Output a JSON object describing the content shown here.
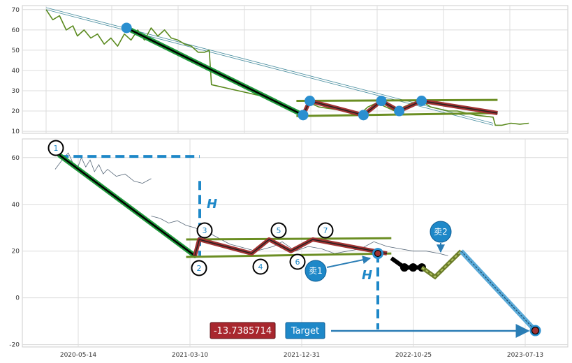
{
  "chart_data": [
    {
      "type": "line",
      "panel": "top",
      "ylim": [
        9,
        72
      ],
      "yticks": [
        10,
        20,
        30,
        40,
        50,
        60,
        70
      ],
      "grid": true,
      "series": [
        {
          "role": "price",
          "color": "#5a8a1e",
          "points": [
            [
              0,
              70
            ],
            [
              1.5,
              65
            ],
            [
              3,
              67
            ],
            [
              4.5,
              60
            ],
            [
              6,
              62
            ],
            [
              7,
              57
            ],
            [
              8.5,
              60
            ],
            [
              10,
              56
            ],
            [
              11.5,
              58
            ],
            [
              13,
              53
            ],
            [
              14.5,
              56
            ],
            [
              16,
              52
            ],
            [
              17.5,
              58
            ],
            [
              19,
              55
            ],
            [
              20.5,
              60
            ],
            [
              22,
              55
            ],
            [
              23.5,
              61
            ],
            [
              25,
              57
            ],
            [
              26.5,
              60
            ],
            [
              28,
              56
            ],
            [
              29.5,
              55
            ],
            [
              31,
              53
            ],
            [
              32.5,
              52
            ],
            [
              34,
              49
            ],
            [
              35.5,
              49
            ],
            [
              36.5,
              50
            ],
            [
              37,
              33
            ],
            [
              39,
              32
            ],
            [
              41,
              31
            ],
            [
              43,
              30
            ],
            [
              45,
              29
            ],
            [
              47,
              28
            ],
            [
              49,
              27
            ],
            [
              51,
              25
            ],
            [
              53,
              23
            ],
            [
              55,
              21
            ],
            [
              56,
              20
            ],
            [
              57.5,
              18
            ],
            [
              59,
              24
            ],
            [
              61,
              22
            ],
            [
              64,
              21
            ],
            [
              67,
              20
            ],
            [
              70,
              18
            ],
            [
              72,
              22
            ],
            [
              74,
              24
            ],
            [
              76,
              22
            ],
            [
              78,
              20
            ],
            [
              80,
              22
            ],
            [
              82,
              24
            ],
            [
              84,
              25
            ],
            [
              86,
              22
            ],
            [
              88,
              21
            ],
            [
              90,
              20
            ],
            [
              92,
              20
            ],
            [
              94,
              19
            ],
            [
              96,
              18
            ],
            [
              100,
              17
            ],
            [
              100.5,
              13
            ],
            [
              102,
              13
            ],
            [
              104,
              14
            ],
            [
              106,
              13.5
            ],
            [
              108,
              14
            ]
          ]
        }
      ],
      "channel": {
        "upper": [
          [
            0,
            71
          ],
          [
            100,
            14
          ]
        ],
        "lower": [
          [
            0,
            70
          ],
          [
            100,
            13
          ]
        ]
      },
      "trend_down": [
        [
          18,
          61
        ],
        [
          57.5,
          18
        ]
      ],
      "zigzag": [
        [
          57.5,
          18
        ],
        [
          59,
          25
        ],
        [
          71,
          18
        ],
        [
          75,
          25
        ],
        [
          79,
          20
        ],
        [
          84,
          25
        ],
        [
          101,
          19
        ]
      ],
      "range_lines": {
        "upper": [
          [
            56,
            25
          ],
          [
            101,
            25.5
          ]
        ],
        "lower": [
          [
            56,
            17.5
          ],
          [
            101,
            19
          ]
        ]
      },
      "pivot_markers": [
        [
          18,
          61
        ],
        [
          57.5,
          18
        ],
        [
          59,
          25
        ],
        [
          71,
          18
        ],
        [
          75,
          25
        ],
        [
          79,
          20
        ],
        [
          84,
          25
        ]
      ]
    },
    {
      "type": "line",
      "panel": "bottom",
      "ylim": [
        -21,
        68
      ],
      "yticks": [
        -20,
        0,
        20,
        40,
        60
      ],
      "grid": true,
      "x_tick_labels": [
        "2020-05-14",
        "2021-03-10",
        "2021-12-31",
        "2022-10-25",
        "2023-07-13"
      ],
      "price_segments": [
        [
          [
            0,
            55
          ],
          [
            2,
            60
          ],
          [
            3,
            62
          ],
          [
            4,
            58
          ],
          [
            5,
            55
          ],
          [
            6,
            60
          ],
          [
            7,
            56
          ],
          [
            8,
            59
          ],
          [
            9,
            54
          ],
          [
            10,
            57
          ],
          [
            11,
            53
          ],
          [
            12,
            55
          ],
          [
            14,
            52
          ],
          [
            16,
            53
          ],
          [
            18,
            50
          ],
          [
            20,
            49
          ],
          [
            22,
            51
          ]
        ],
        [
          [
            22,
            35
          ],
          [
            24,
            34
          ],
          [
            26,
            32
          ],
          [
            28,
            33
          ],
          [
            30,
            31
          ],
          [
            32,
            30
          ],
          [
            34,
            28
          ],
          [
            36,
            27
          ],
          [
            38,
            25
          ],
          [
            40,
            23
          ],
          [
            42,
            22
          ],
          [
            44,
            21
          ],
          [
            46,
            20
          ],
          [
            48,
            21
          ],
          [
            50,
            22
          ],
          [
            52,
            24
          ],
          [
            55,
            20
          ],
          [
            58,
            22
          ],
          [
            61,
            21
          ],
          [
            64,
            19
          ],
          [
            67,
            20
          ],
          [
            70,
            21
          ],
          [
            73,
            24
          ],
          [
            76,
            22
          ],
          [
            79,
            21
          ],
          [
            82,
            20
          ],
          [
            85,
            20
          ],
          [
            88,
            19
          ],
          [
            90,
            18
          ]
        ]
      ],
      "trend_down": [
        [
          1,
          61
        ],
        [
          32,
          18
        ]
      ],
      "zigzag": [
        [
          32,
          18
        ],
        [
          33,
          25
        ],
        [
          45,
          19
        ],
        [
          49,
          25
        ],
        [
          54,
          20
        ],
        [
          59,
          25
        ],
        [
          76,
          19
        ]
      ],
      "range_lines": {
        "upper": [
          [
            30,
            25
          ],
          [
            77,
            25.5
          ]
        ],
        "lower": [
          [
            30,
            17.5
          ],
          [
            77,
            19
          ]
        ]
      },
      "dashed_horizontal_level": 60.5,
      "projection": [
        [
          77,
          17
        ],
        [
          80,
          13
        ],
        [
          82,
          13
        ],
        [
          84,
          13
        ],
        [
          87,
          9
        ],
        [
          93,
          20
        ],
        [
          110,
          -14
        ]
      ],
      "target_level": -14,
      "labels": {
        "points": [
          "1",
          "2",
          "3",
          "4",
          "5",
          "6",
          "7"
        ],
        "h_marks": [
          "H",
          "H"
        ],
        "sell_markers": [
          "卖1",
          "卖2"
        ],
        "value_box": "-13.7385714",
        "target_box": "Target"
      }
    }
  ]
}
